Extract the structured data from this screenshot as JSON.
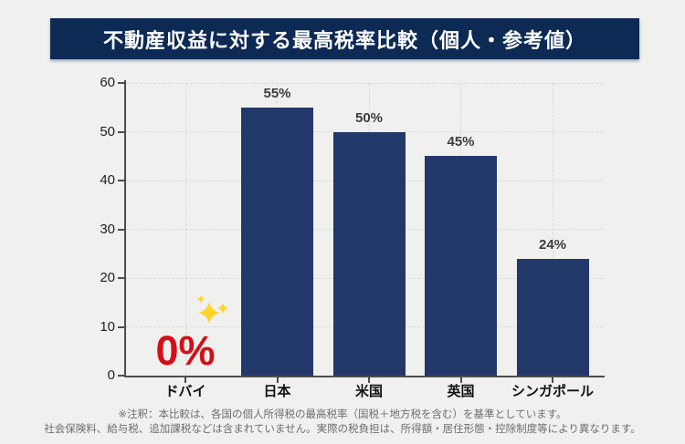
{
  "banner": {
    "title": "不動産収益に対する最高税率比較（個人・参考値）"
  },
  "chart_data": {
    "type": "bar",
    "title": "不動産収益に対する最高税率比較（個人・参考値）",
    "categories": [
      "ドバイ",
      "日本",
      "米国",
      "英国",
      "シンガポール"
    ],
    "values": [
      0,
      55,
      50,
      45,
      24
    ],
    "bar_labels": [
      "0%",
      "55%",
      "50%",
      "45%",
      "24%"
    ],
    "xlabel": "",
    "ylabel": "",
    "ylim": [
      0,
      60
    ],
    "yticks": [
      0,
      10,
      20,
      30,
      40,
      50,
      60
    ],
    "grid": true,
    "legend": false,
    "bar_color": "#23386a",
    "highlight": {
      "category": "ドバイ",
      "label": "0%",
      "label_color": "#d40f17",
      "icon": "sparkles-icon",
      "icon_color": "#ffd428"
    }
  },
  "footnote": {
    "line1": "※注釈：本比較は、各国の個人所得税の最高税率（国税＋地方税を含む）を基準としています。",
    "line2": "社会保険料、給与税、追加課税などは含まれていません。実際の税負担は、所得額・居住形態・控除制度等により異なります。"
  },
  "colors": {
    "page_bg": "#f0f0ee",
    "banner_bg": "#0d2a55",
    "banner_text": "#ffffff",
    "bar": "#23386a",
    "grid": "#d8d8d4",
    "axis": "#4d4d4d",
    "tick_text": "#1f1f1f",
    "value_label": "#3d3d3d",
    "highlight_red": "#d40f17",
    "sparkle": "#ffd428",
    "footnote_text": "#6e6e6e"
  }
}
